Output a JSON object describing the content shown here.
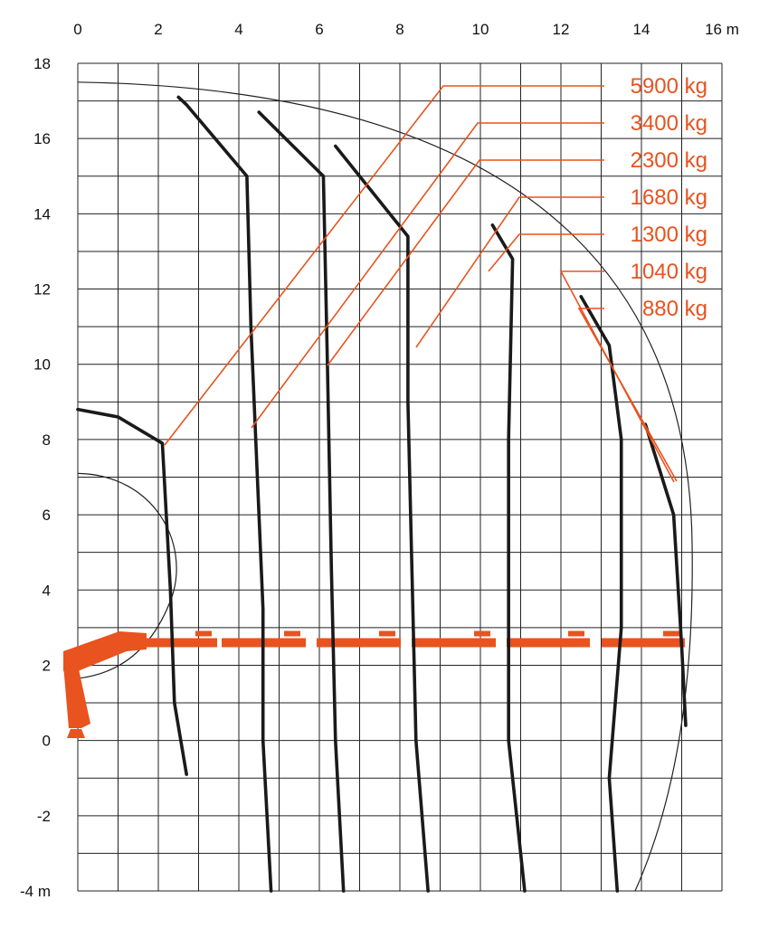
{
  "chart_data": {
    "type": "line",
    "title": "",
    "xlabel": "",
    "ylabel": "",
    "xlim": [
      0,
      16
    ],
    "ylim": [
      -4,
      18
    ],
    "x_ticks": [
      "0",
      "2",
      "4",
      "6",
      "8",
      "10",
      "12",
      "14",
      "16 m"
    ],
    "y_ticks": [
      "18",
      "16",
      "14",
      "12",
      "10",
      "8",
      "6",
      "4",
      "2",
      "0",
      "-2",
      "-4 m"
    ],
    "grid": "on, 1 m spacing",
    "accent_color": "#e8531f",
    "curve_color": "#1a1a1a",
    "series": [
      {
        "name": "5900 kg",
        "points": [
          [
            0,
            8.8
          ],
          [
            1,
            8.6
          ],
          [
            2.1,
            7.9
          ],
          [
            2.3,
            4
          ],
          [
            2.4,
            1
          ],
          [
            2.7,
            -0.9
          ]
        ]
      },
      {
        "name": "3400 kg",
        "points": [
          [
            2.5,
            17.1
          ],
          [
            2.7,
            16.9
          ],
          [
            4.2,
            15
          ],
          [
            4.3,
            11
          ],
          [
            4.6,
            3.5
          ],
          [
            4.6,
            0
          ],
          [
            4.8,
            -4
          ]
        ]
      },
      {
        "name": "2300 kg",
        "points": [
          [
            4.5,
            16.7
          ],
          [
            6.1,
            15
          ],
          [
            6.2,
            10
          ],
          [
            6.3,
            4.5
          ],
          [
            6.4,
            0
          ],
          [
            6.6,
            -4
          ]
        ]
      },
      {
        "name": "1680 kg",
        "points": [
          [
            6.4,
            15.8
          ],
          [
            8.2,
            13.4
          ],
          [
            8.2,
            9
          ],
          [
            8.3,
            4.5
          ],
          [
            8.4,
            0
          ],
          [
            8.7,
            -4
          ]
        ]
      },
      {
        "name": "1300 kg",
        "points": [
          [
            10.3,
            13.7
          ],
          [
            10.8,
            12.8
          ],
          [
            10.7,
            8
          ],
          [
            10.7,
            3.5
          ],
          [
            10.7,
            0
          ],
          [
            11.1,
            -4
          ]
        ]
      },
      {
        "name": "1040 kg",
        "points": [
          [
            12.5,
            11.8
          ],
          [
            13.2,
            10.5
          ],
          [
            13.5,
            8
          ],
          [
            13.5,
            3
          ],
          [
            13.2,
            -1
          ],
          [
            13.4,
            -4
          ]
        ]
      },
      {
        "name": "880 kg",
        "points": [
          [
            14.1,
            8.4
          ],
          [
            14.8,
            6
          ],
          [
            15.0,
            2.5
          ],
          [
            15.1,
            0.4
          ]
        ]
      }
    ],
    "envelope_outer": "arc from (0, 17.5) through (15.3, 2.8) to (14, -4)",
    "envelope_inner": "arc from (0, 7.1) to (0, 2.1)",
    "label_order": [
      "5900 kg",
      "3400 kg",
      "2300 kg",
      "1680 kg",
      "1300 kg",
      "1040 kg",
      "880 kg"
    ]
  }
}
